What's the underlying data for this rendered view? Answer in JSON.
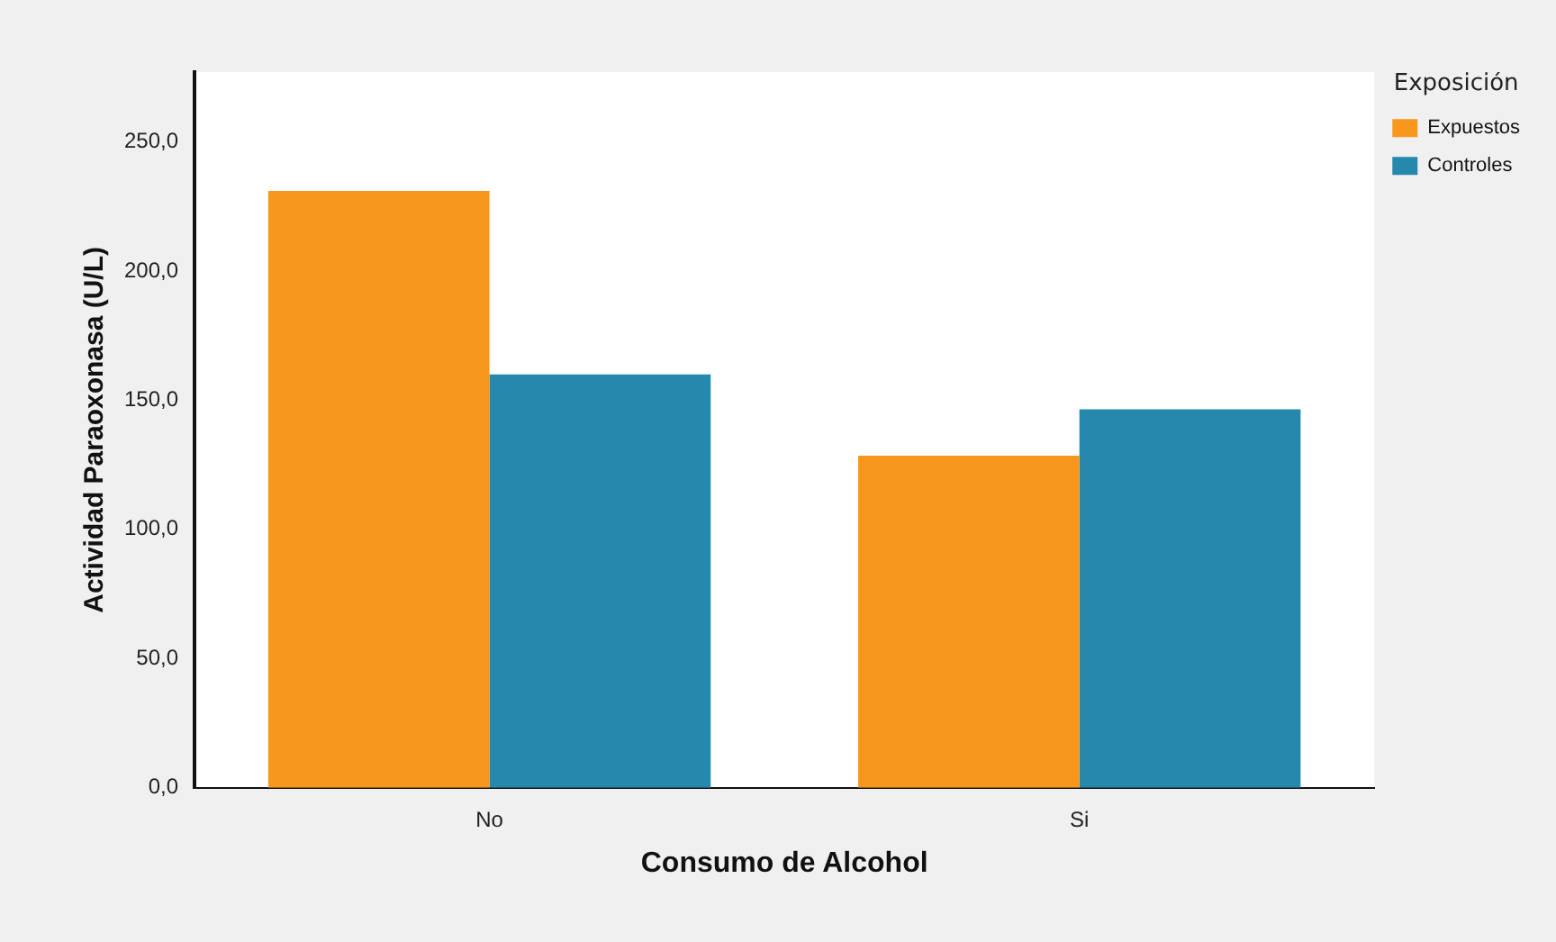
{
  "chart_data": {
    "type": "bar",
    "categories": [
      "No",
      "Si"
    ],
    "series": [
      {
        "name": "Expuestos",
        "color": "#f7981d",
        "values": [
          231,
          128.5
        ]
      },
      {
        "name": "Controles",
        "color": "#2489ad",
        "values": [
          160,
          146.5
        ]
      }
    ],
    "xlabel": "Consumo de Alcohol",
    "ylabel": "Actividad Paraoxonasa (U/L)",
    "legend_title": "Exposición",
    "legend": "top right",
    "ylim": [
      0,
      277
    ],
    "yticks": [
      {
        "value": 0,
        "label": "0,0"
      },
      {
        "value": 50,
        "label": "50,0"
      },
      {
        "value": 100,
        "label": "100,0"
      },
      {
        "value": 150,
        "label": "150,0"
      },
      {
        "value": 200,
        "label": "200,0"
      },
      {
        "value": 250,
        "label": "250,0"
      }
    ],
    "grid": false
  }
}
